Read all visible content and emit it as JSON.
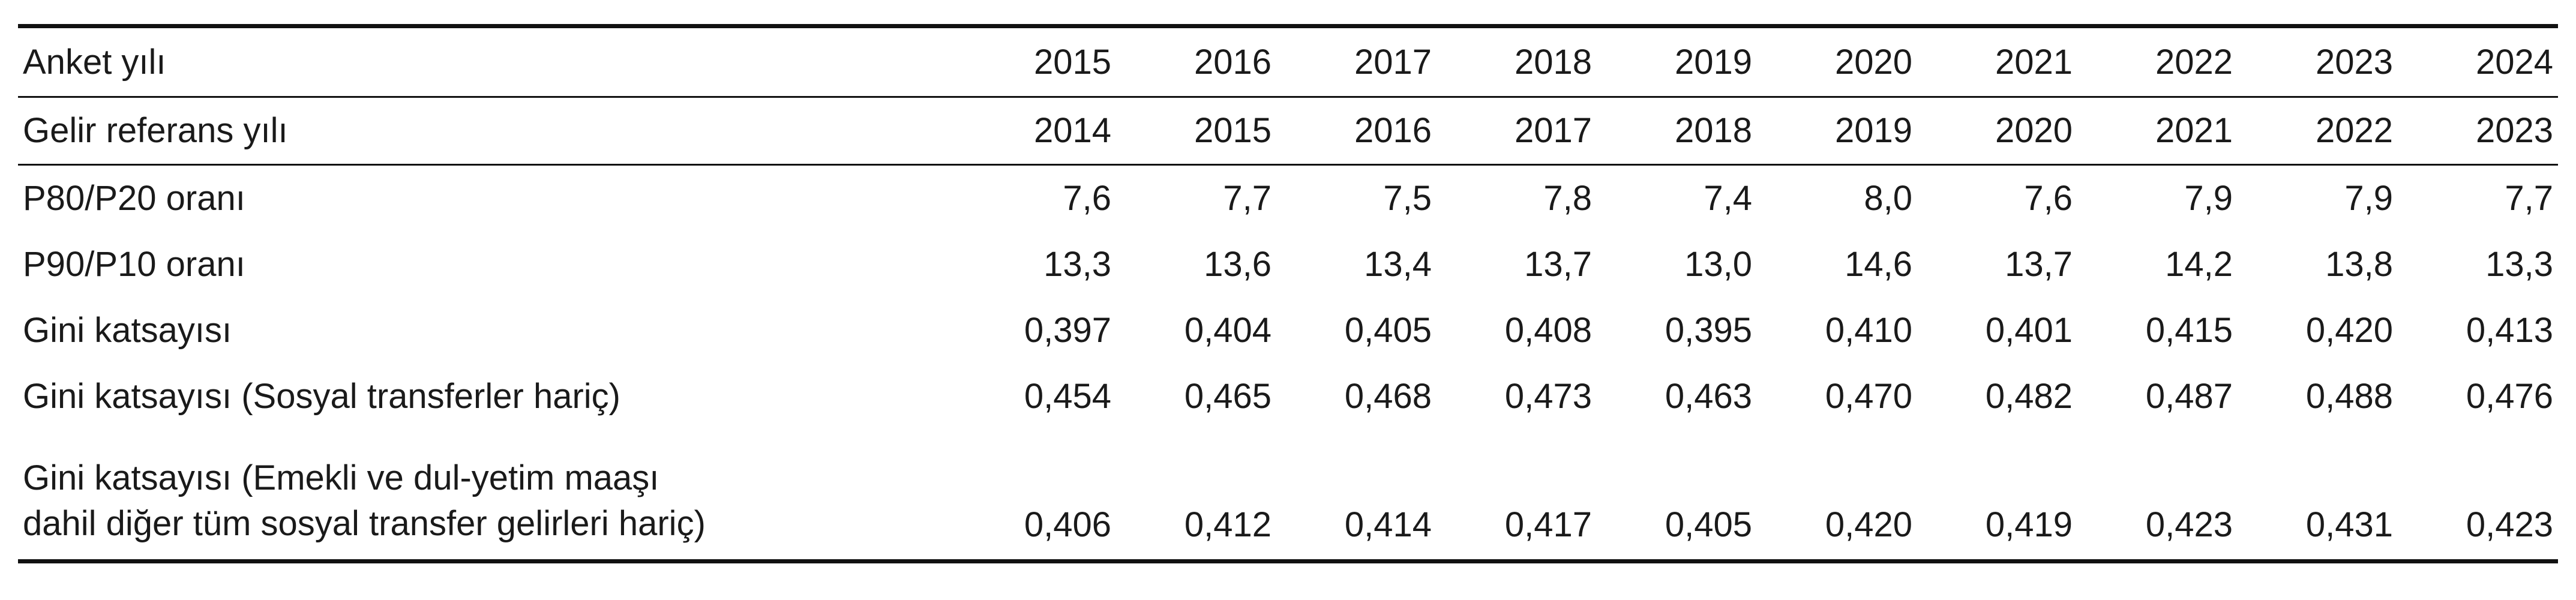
{
  "table": {
    "survey_year": {
      "label": "Anket yılı",
      "values": [
        "2015",
        "2016",
        "2017",
        "2018",
        "2019",
        "2020",
        "2021",
        "2022",
        "2023",
        "2024"
      ]
    },
    "income_reference_year": {
      "label": "Gelir referans yılı",
      "values": [
        "2014",
        "2015",
        "2016",
        "2017",
        "2018",
        "2019",
        "2020",
        "2021",
        "2022",
        "2023"
      ]
    },
    "rows": [
      {
        "label": "P80/P20 oranı",
        "values": [
          "7,6",
          "7,7",
          "7,5",
          "7,8",
          "7,4",
          "8,0",
          "7,6",
          "7,9",
          "7,9",
          "7,7"
        ]
      },
      {
        "label": "P90/P10 oranı",
        "values": [
          "13,3",
          "13,6",
          "13,4",
          "13,7",
          "13,0",
          "14,6",
          "13,7",
          "14,2",
          "13,8",
          "13,3"
        ]
      },
      {
        "label": "Gini katsayısı",
        "values": [
          "0,397",
          "0,404",
          "0,405",
          "0,408",
          "0,395",
          "0,410",
          "0,401",
          "0,415",
          "0,420",
          "0,413"
        ]
      },
      {
        "label": "Gini katsayısı (Sosyal transferler hariç)",
        "values": [
          "0,454",
          "0,465",
          "0,468",
          "0,473",
          "0,463",
          "0,470",
          "0,482",
          "0,487",
          "0,488",
          "0,476"
        ]
      }
    ],
    "last_row": {
      "label_line1": "Gini katsayısı (Emekli ve dul-yetim maaşı",
      "label_line2": "dahil diğer tüm sosyal transfer gelirleri hariç)",
      "values": [
        "0,406",
        "0,412",
        "0,414",
        "0,417",
        "0,405",
        "0,420",
        "0,419",
        "0,423",
        "0,431",
        "0,423"
      ]
    }
  }
}
